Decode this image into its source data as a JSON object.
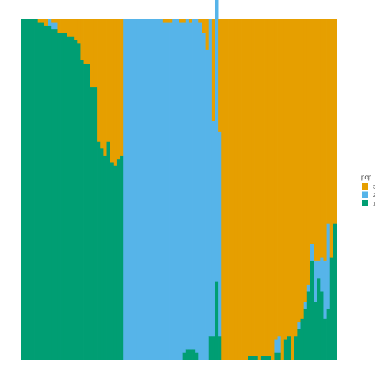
{
  "chart_data": {
    "type": "bar",
    "stacked": true,
    "normalized": true,
    "xlabel": "",
    "ylabel": "",
    "ylim": [
      0,
      1
    ],
    "grid": false,
    "legend": {
      "title": "pop",
      "position": "right",
      "entries": [
        {
          "label": "3",
          "color": "#E69F00"
        },
        {
          "label": "2",
          "color": "#56B4E9"
        },
        {
          "label": "1",
          "color": "#009E73"
        }
      ]
    },
    "stack_order_bottom_to_top": [
      "1",
      "2",
      "3"
    ],
    "series": [
      {
        "name": "1",
        "color": "#009E73",
        "values": [
          1.0,
          1.0,
          1.0,
          1.0,
          1.0,
          0.99,
          0.99,
          0.98,
          0.98,
          0.97,
          0.97,
          0.96,
          0.96,
          0.96,
          0.95,
          0.95,
          0.94,
          0.93,
          0.88,
          0.87,
          0.87,
          0.8,
          0.8,
          0.64,
          0.62,
          0.6,
          0.64,
          0.58,
          0.57,
          0.59,
          0.6,
          0.0,
          0.0,
          0.0,
          0.0,
          0.0,
          0.0,
          0.0,
          0.0,
          0.0,
          0.0,
          0.0,
          0.0,
          0.0,
          0.0,
          0.0,
          0.0,
          0.0,
          0.0,
          0.02,
          0.03,
          0.03,
          0.03,
          0.02,
          0.0,
          0.0,
          0.0,
          0.07,
          0.07,
          0.23,
          0.07,
          0.0,
          0.0,
          0.0,
          0.0,
          0.0,
          0.0,
          0.0,
          0.0,
          0.01,
          0.01,
          0.01,
          0.0,
          0.01,
          0.01,
          0.01,
          0.0,
          0.02,
          0.02,
          0.0,
          0.06,
          0.07,
          0.0,
          0.07,
          0.09,
          0.12,
          0.15,
          0.2,
          0.29,
          0.17,
          0.24,
          0.2,
          0.12,
          0.15,
          0.3,
          0.4
        ]
      },
      {
        "name": "2",
        "color": "#56B4E9",
        "values": [
          0.0,
          0.0,
          0.0,
          0.0,
          0.0,
          0.0,
          0.0,
          0.0,
          0.02,
          0.02,
          0.02,
          0.0,
          0.0,
          0.0,
          0.0,
          0.0,
          0.0,
          0.0,
          0.0,
          0.0,
          0.0,
          0.0,
          0.0,
          0.0,
          0.0,
          0.0,
          0.0,
          0.0,
          0.0,
          0.0,
          0.0,
          1.0,
          1.0,
          1.0,
          1.0,
          1.0,
          1.0,
          1.0,
          1.0,
          1.0,
          1.0,
          1.0,
          1.0,
          0.99,
          0.99,
          0.99,
          1.0,
          1.0,
          0.99,
          0.97,
          0.97,
          0.96,
          0.97,
          0.98,
          0.99,
          0.96,
          0.91,
          0.93,
          0.63,
          0.93,
          0.6,
          0.0,
          0.0,
          0.0,
          0.0,
          0.0,
          0.0,
          0.0,
          0.0,
          0.0,
          0.0,
          0.0,
          0.0,
          0.0,
          0.0,
          0.0,
          0.0,
          0.04,
          0.05,
          0.0,
          0.0,
          0.0,
          0.0,
          0.0,
          0.02,
          0.0,
          0.02,
          0.02,
          0.05,
          0.12,
          0.05,
          0.1,
          0.17,
          0.25,
          0.0,
          0.0
        ]
      },
      {
        "name": "3",
        "color": "#E69F00",
        "values": [
          0.0,
          0.0,
          0.0,
          0.0,
          0.0,
          0.01,
          0.01,
          0.02,
          0.0,
          0.01,
          0.01,
          0.04,
          0.04,
          0.04,
          0.05,
          0.05,
          0.06,
          0.07,
          0.12,
          0.13,
          0.13,
          0.2,
          0.2,
          0.36,
          0.38,
          0.4,
          0.36,
          0.42,
          0.43,
          0.41,
          0.4,
          0.0,
          0.0,
          0.0,
          0.0,
          0.0,
          0.0,
          0.0,
          0.0,
          0.0,
          0.0,
          0.0,
          0.0,
          0.01,
          0.01,
          0.01,
          0.0,
          0.0,
          0.01,
          0.01,
          0.0,
          0.01,
          0.0,
          0.0,
          0.01,
          0.04,
          0.09,
          0.0,
          0.3,
          0.0,
          0.33,
          1.0,
          1.0,
          1.0,
          1.0,
          1.0,
          1.0,
          1.0,
          1.0,
          0.99,
          0.99,
          0.99,
          1.0,
          0.99,
          0.99,
          0.99,
          1.0,
          0.94,
          0.93,
          1.0,
          0.94,
          0.93,
          1.0,
          0.93,
          0.89,
          0.88,
          0.83,
          0.78,
          0.66,
          0.71,
          0.71,
          0.7,
          0.71,
          0.6,
          0.7,
          0.6
        ]
      }
    ]
  }
}
